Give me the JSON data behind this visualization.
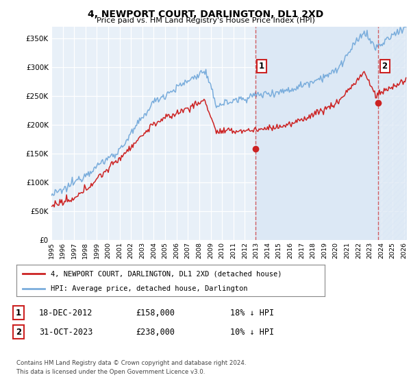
{
  "title": "4, NEWPORT COURT, DARLINGTON, DL1 2XD",
  "subtitle": "Price paid vs. HM Land Registry's House Price Index (HPI)",
  "ylim": [
    0,
    370000
  ],
  "yticks": [
    0,
    50000,
    100000,
    150000,
    200000,
    250000,
    300000,
    350000
  ],
  "ytick_labels": [
    "£0",
    "£50K",
    "£100K",
    "£150K",
    "£200K",
    "£250K",
    "£300K",
    "£350K"
  ],
  "hpi_color": "#7aaddc",
  "price_color": "#cc2222",
  "vline_color": "#cc2222",
  "sale1_date": "18-DEC-2012",
  "sale1_price": "£158,000",
  "sale1_note": "18% ↓ HPI",
  "sale2_date": "31-OCT-2023",
  "sale2_price": "£238,000",
  "sale2_note": "10% ↓ HPI",
  "legend_line1": "4, NEWPORT COURT, DARLINGTON, DL1 2XD (detached house)",
  "legend_line2": "HPI: Average price, detached house, Darlington",
  "footer1": "Contains HM Land Registry data © Crown copyright and database right 2024.",
  "footer2": "This data is licensed under the Open Government Licence v3.0.",
  "bg_color": "#e8f0f8",
  "shade_color": "#dce8f5",
  "grid_color": "#ffffff"
}
